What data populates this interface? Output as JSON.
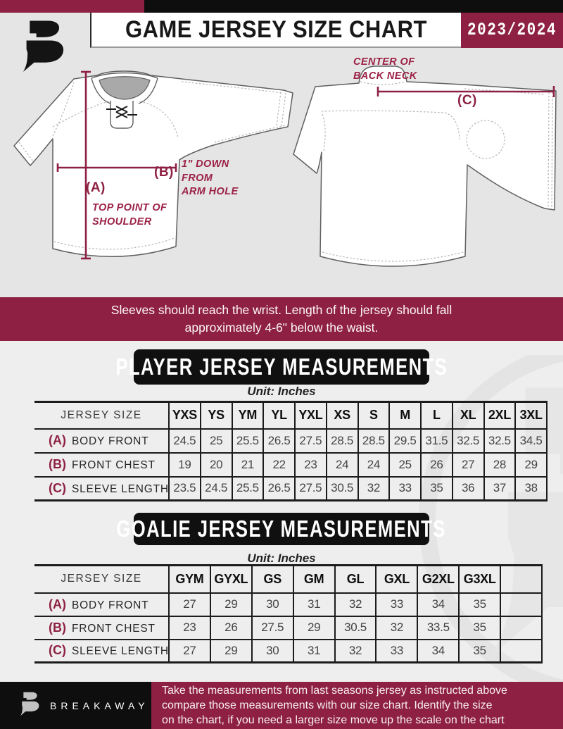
{
  "header": {
    "title": "GAME JERSEY SIZE CHART",
    "season": "2023/2024"
  },
  "diagram": {
    "front_label_a": "(A)",
    "front_note_a": "TOP POINT OF SHOULDER",
    "front_label_b": "(B)",
    "front_note_b": "1\" DOWN FROM ARM HOLE",
    "back_label_c": "(C)",
    "back_note_c": "CENTER OF BACK NECK"
  },
  "notice": {
    "lines": [
      "Sleeves should reach the wrist. Length of the jersey should fall",
      "approximately 4-6\" below the waist."
    ]
  },
  "player_table": {
    "title": "PLAYER JERSEY MEASUREMENTS",
    "unit": "Unit: Inches",
    "size_label": "JERSEY SIZE",
    "sizes": [
      "YXS",
      "YS",
      "YM",
      "YL",
      "YXL",
      "XS",
      "S",
      "M",
      "L",
      "XL",
      "2XL",
      "3XL"
    ],
    "rows": [
      {
        "key": "(A)",
        "label": "BODY FRONT",
        "values": [
          "24.5",
          "25",
          "25.5",
          "26.5",
          "27.5",
          "28.5",
          "28.5",
          "29.5",
          "31.5",
          "32.5",
          "32.5",
          "34.5"
        ]
      },
      {
        "key": "(B)",
        "label": "FRONT CHEST",
        "values": [
          "19",
          "20",
          "21",
          "22",
          "23",
          "24",
          "24",
          "25",
          "26",
          "27",
          "28",
          "29"
        ]
      },
      {
        "key": "(C)",
        "label": "SLEEVE LENGTH",
        "values": [
          "23.5",
          "24.5",
          "25.5",
          "26.5",
          "27.5",
          "30.5",
          "32",
          "33",
          "35",
          "36",
          "37",
          "38"
        ]
      }
    ]
  },
  "goalie_table": {
    "title": "GOALIE JERSEY MEASUREMENTS",
    "unit": "Unit: Inches",
    "size_label": "JERSEY SIZE",
    "sizes": [
      "GYM",
      "GYXL",
      "GS",
      "GM",
      "GL",
      "GXL",
      "G2XL",
      "G3XL",
      ""
    ],
    "rows": [
      {
        "key": "(A)",
        "label": "BODY FRONT",
        "values": [
          "27",
          "29",
          "30",
          "31",
          "32",
          "33",
          "34",
          "35",
          ""
        ]
      },
      {
        "key": "(B)",
        "label": "FRONT CHEST",
        "values": [
          "23",
          "26",
          "27.5",
          "29",
          "30.5",
          "32",
          "33.5",
          "35",
          ""
        ]
      },
      {
        "key": "(C)",
        "label": "SLEEVE LENGTH",
        "values": [
          "27",
          "29",
          "30",
          "31",
          "32",
          "33",
          "34",
          "35",
          ""
        ]
      }
    ]
  },
  "footer": {
    "brand": "BREAKAWAY",
    "lines": [
      "Take the measurements from last seasons jersey as instructed above",
      "compare those measurements  with our size chart. Identify the size",
      "on the chart, if you need a larger size move up the scale on the chart"
    ]
  },
  "colors": {
    "maroon": "#8e2143",
    "black": "#0e0e0e",
    "diagram_bg": "#e6e5e5",
    "tables_bg": "#efeeee"
  }
}
